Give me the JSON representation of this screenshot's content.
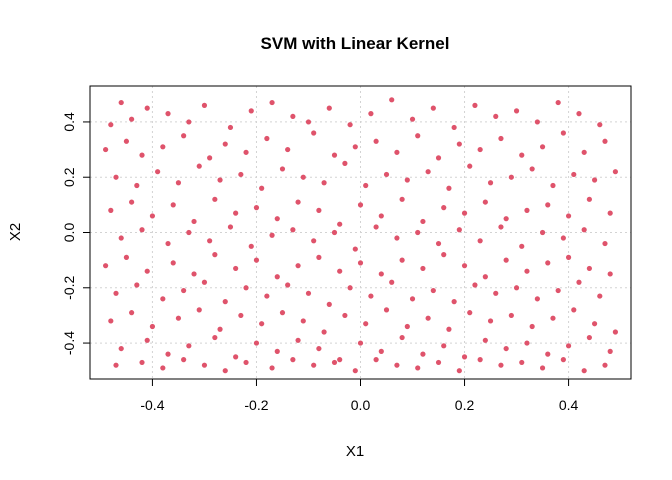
{
  "chart_data": {
    "type": "scatter",
    "title": "SVM with Linear Kernel",
    "xlabel": "X1",
    "ylabel": "X2",
    "xlim": [
      -0.52,
      0.52
    ],
    "ylim": [
      -0.53,
      0.53
    ],
    "xticks": [
      -0.4,
      -0.2,
      0.0,
      0.2,
      0.4
    ],
    "xtick_labels": [
      "-0.4",
      "-0.2",
      "0.0",
      "0.2",
      "0.4"
    ],
    "yticks": [
      -0.4,
      -0.2,
      0.0,
      0.2,
      0.4
    ],
    "ytick_labels": [
      "-0.4",
      "-0.2",
      "0.0",
      "0.2",
      "0.4"
    ],
    "grid": true,
    "point_color": "#DF536B",
    "series": [
      {
        "x": [
          -0.48,
          -0.46,
          -0.44,
          -0.41,
          -0.37,
          -0.33,
          -0.3,
          -0.25,
          -0.21,
          -0.17,
          -0.13,
          -0.1,
          -0.06,
          -0.02,
          0.02,
          0.06,
          0.1,
          0.14,
          0.18,
          0.22,
          0.26,
          0.3,
          0.34,
          0.38,
          0.42,
          0.46,
          -0.49,
          -0.45,
          -0.42,
          -0.38,
          -0.34,
          -0.29,
          -0.26,
          -0.22,
          -0.18,
          -0.14,
          -0.09,
          -0.05,
          -0.01,
          0.03,
          0.07,
          0.11,
          0.15,
          0.19,
          0.23,
          0.27,
          0.31,
          0.35,
          0.39,
          0.43,
          0.47,
          -0.47,
          -0.43,
          -0.39,
          -0.35,
          -0.31,
          -0.27,
          -0.23,
          -0.19,
          -0.15,
          -0.11,
          -0.07,
          -0.03,
          0.01,
          0.05,
          0.09,
          0.13,
          0.17,
          0.21,
          0.25,
          0.29,
          0.33,
          0.37,
          0.41,
          0.45,
          0.49,
          -0.48,
          -0.44,
          -0.4,
          -0.36,
          -0.32,
          -0.28,
          -0.24,
          -0.2,
          -0.16,
          -0.12,
          -0.08,
          -0.04,
          0.0,
          0.04,
          0.08,
          0.12,
          0.16,
          0.2,
          0.24,
          0.28,
          0.32,
          0.36,
          0.4,
          0.44,
          0.48,
          -0.46,
          -0.42,
          -0.37,
          -0.33,
          -0.29,
          -0.25,
          -0.21,
          -0.17,
          -0.13,
          -0.09,
          -0.05,
          -0.01,
          0.03,
          0.07,
          0.11,
          0.15,
          0.19,
          0.23,
          0.27,
          0.31,
          0.35,
          0.39,
          0.43,
          0.47,
          -0.49,
          -0.45,
          -0.41,
          -0.36,
          -0.32,
          -0.28,
          -0.24,
          -0.2,
          -0.16,
          -0.12,
          -0.08,
          -0.04,
          0.0,
          0.04,
          0.08,
          0.12,
          0.16,
          0.2,
          0.24,
          0.28,
          0.32,
          0.36,
          0.4,
          0.44,
          0.48,
          -0.47,
          -0.43,
          -0.38,
          -0.34,
          -0.3,
          -0.26,
          -0.22,
          -0.18,
          -0.14,
          -0.1,
          -0.06,
          -0.02,
          0.02,
          0.06,
          0.1,
          0.14,
          0.18,
          0.22,
          0.26,
          0.3,
          0.34,
          0.38,
          0.42,
          0.46,
          -0.48,
          -0.44,
          -0.4,
          -0.35,
          -0.31,
          -0.27,
          -0.23,
          -0.19,
          -0.15,
          -0.11,
          -0.07,
          -0.03,
          0.01,
          0.05,
          0.09,
          0.13,
          0.17,
          0.21,
          0.25,
          0.29,
          0.33,
          0.37,
          0.41,
          0.45,
          0.49,
          -0.46,
          -0.41,
          -0.37,
          -0.33,
          -0.28,
          -0.24,
          -0.2,
          -0.16,
          -0.12,
          -0.08,
          -0.04,
          0.0,
          0.04,
          0.08,
          0.12,
          0.16,
          0.2,
          0.24,
          0.28,
          0.32,
          0.36,
          0.4,
          0.44,
          0.48,
          -0.47,
          -0.42,
          -0.38,
          -0.34,
          -0.3,
          -0.26,
          -0.22,
          -0.17,
          -0.13,
          -0.09,
          -0.05,
          -0.01,
          0.03,
          0.07,
          0.11,
          0.15,
          0.19,
          0.23,
          0.27,
          0.31,
          0.35,
          0.39,
          0.43,
          0.47
        ],
        "y": [
          0.39,
          0.47,
          0.41,
          0.45,
          0.43,
          0.4,
          0.46,
          0.38,
          0.44,
          0.47,
          0.42,
          0.4,
          0.45,
          0.39,
          0.43,
          0.48,
          0.41,
          0.45,
          0.38,
          0.46,
          0.42,
          0.44,
          0.4,
          0.47,
          0.43,
          0.39,
          0.3,
          0.33,
          0.28,
          0.31,
          0.35,
          0.27,
          0.32,
          0.29,
          0.34,
          0.3,
          0.36,
          0.28,
          0.31,
          0.33,
          0.29,
          0.35,
          0.27,
          0.32,
          0.3,
          0.34,
          0.28,
          0.31,
          0.36,
          0.29,
          0.33,
          0.2,
          0.17,
          0.22,
          0.18,
          0.24,
          0.19,
          0.21,
          0.16,
          0.23,
          0.2,
          0.18,
          0.25,
          0.17,
          0.21,
          0.19,
          0.22,
          0.16,
          0.24,
          0.18,
          0.2,
          0.23,
          0.17,
          0.21,
          0.19,
          0.22,
          0.08,
          0.11,
          0.06,
          0.1,
          0.04,
          0.12,
          0.07,
          0.09,
          0.05,
          0.11,
          0.08,
          0.03,
          0.1,
          0.06,
          0.12,
          0.04,
          0.09,
          0.07,
          0.11,
          0.05,
          0.08,
          0.1,
          0.06,
          0.12,
          0.07,
          -0.02,
          0.01,
          -0.04,
          0.0,
          -0.03,
          0.02,
          -0.05,
          -0.01,
          0.01,
          -0.03,
          0.0,
          -0.06,
          0.02,
          -0.02,
          0.0,
          -0.04,
          0.01,
          -0.03,
          0.02,
          -0.05,
          0.0,
          -0.02,
          0.01,
          -0.04,
          -0.12,
          -0.09,
          -0.14,
          -0.11,
          -0.15,
          -0.08,
          -0.13,
          -0.1,
          -0.16,
          -0.12,
          -0.09,
          -0.14,
          -0.11,
          -0.15,
          -0.1,
          -0.13,
          -0.08,
          -0.12,
          -0.16,
          -0.1,
          -0.14,
          -0.11,
          -0.09,
          -0.13,
          -0.15,
          -0.22,
          -0.19,
          -0.24,
          -0.21,
          -0.18,
          -0.25,
          -0.2,
          -0.23,
          -0.19,
          -0.22,
          -0.26,
          -0.2,
          -0.23,
          -0.18,
          -0.24,
          -0.21,
          -0.25,
          -0.19,
          -0.22,
          -0.2,
          -0.24,
          -0.21,
          -0.18,
          -0.23,
          -0.32,
          -0.29,
          -0.34,
          -0.31,
          -0.28,
          -0.35,
          -0.3,
          -0.33,
          -0.29,
          -0.32,
          -0.36,
          -0.3,
          -0.33,
          -0.28,
          -0.34,
          -0.31,
          -0.35,
          -0.29,
          -0.32,
          -0.3,
          -0.34,
          -0.31,
          -0.28,
          -0.33,
          -0.36,
          -0.42,
          -0.39,
          -0.44,
          -0.41,
          -0.38,
          -0.45,
          -0.4,
          -0.43,
          -0.39,
          -0.42,
          -0.46,
          -0.4,
          -0.43,
          -0.38,
          -0.44,
          -0.41,
          -0.45,
          -0.39,
          -0.42,
          -0.4,
          -0.44,
          -0.41,
          -0.38,
          -0.43,
          -0.48,
          -0.47,
          -0.49,
          -0.46,
          -0.48,
          -0.5,
          -0.47,
          -0.49,
          -0.46,
          -0.48,
          -0.47,
          -0.5,
          -0.46,
          -0.48,
          -0.49,
          -0.47,
          -0.5,
          -0.46,
          -0.48,
          -0.47,
          -0.49,
          -0.46,
          -0.5,
          -0.48
        ]
      }
    ]
  }
}
